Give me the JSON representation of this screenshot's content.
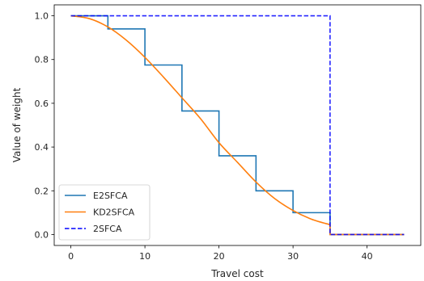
{
  "chart_data": {
    "type": "line",
    "title": "",
    "xlabel": "Travel cost",
    "ylabel": "Value of weight",
    "xlim": [
      -2.25,
      47.25
    ],
    "ylim": [
      -0.05,
      1.05
    ],
    "xticks": [
      0,
      10,
      20,
      30,
      40
    ],
    "xtick_labels": [
      "0",
      "10",
      "20",
      "30",
      "40"
    ],
    "yticks": [
      0.0,
      0.2,
      0.4,
      0.6,
      0.8,
      1.0
    ],
    "ytick_labels": [
      "0.0",
      "0.2",
      "0.4",
      "0.6",
      "0.8",
      "1.0"
    ],
    "grid": false,
    "legend_position": "lower-left",
    "series": [
      {
        "name": "E2SFCA",
        "color": "#1f77b4",
        "style": "solid",
        "kind": "step",
        "x": [
          0,
          5,
          5,
          10,
          10,
          15,
          15,
          20,
          20,
          25,
          25,
          30,
          30,
          35,
          35,
          45
        ],
        "y": [
          1.0,
          1.0,
          0.94,
          0.94,
          0.775,
          0.775,
          0.565,
          0.565,
          0.36,
          0.36,
          0.2,
          0.2,
          0.1,
          0.1,
          0.0,
          0.0
        ]
      },
      {
        "name": "KD2SFCA",
        "color": "#ff7f0e",
        "style": "solid",
        "kind": "line",
        "x": [
          0,
          2.5,
          5,
          7.5,
          10,
          12.5,
          15,
          17.5,
          20,
          22.5,
          25,
          27.5,
          30,
          32.5,
          35,
          35,
          45
        ],
        "y": [
          1.0,
          0.987,
          0.949,
          0.888,
          0.81,
          0.72,
          0.625,
          0.53,
          0.42,
          0.33,
          0.24,
          0.165,
          0.11,
          0.07,
          0.045,
          0.0,
          0.0
        ]
      },
      {
        "name": "2SFCA",
        "color": "#0000ff",
        "style": "dashed",
        "kind": "line",
        "x": [
          0,
          35,
          35,
          45
        ],
        "y": [
          1.0,
          1.0,
          0.0,
          0.0
        ]
      }
    ]
  }
}
